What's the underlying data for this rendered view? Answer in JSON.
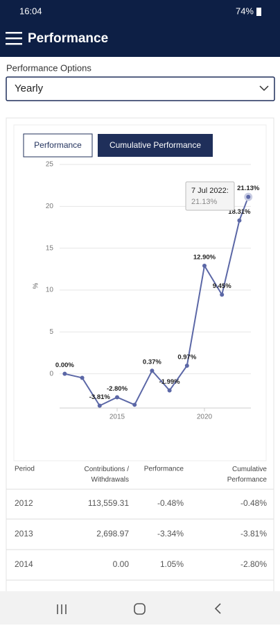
{
  "status_bar": {
    "time": "16:04",
    "battery": "74%"
  },
  "app_bar": {
    "title": "Performance"
  },
  "options": {
    "label": "Performance Options",
    "selected": "Yearly"
  },
  "tabs": [
    "Performance",
    "Cumulative Performance"
  ],
  "chart_data": {
    "type": "line",
    "y_label": "%",
    "x": [
      2012,
      2013,
      2014,
      2015,
      2016,
      2017,
      2018,
      2019,
      2020,
      2021,
      2022,
      2022.51
    ],
    "series": [
      {
        "color": "#5b67a6",
        "values": [
          0,
          -0.48,
          -3.81,
          -2.8,
          -3.7,
          0.37,
          -1.99,
          0.97,
          12.9,
          9.45,
          18.31,
          21.13
        ],
        "value_labels": [
          "0.00%",
          null,
          "-3.81%",
          "-2.80%",
          null,
          "0.37%",
          "-1.99%",
          "0.97%",
          "12.90%",
          "9.45%",
          "18.31%",
          "21.13%"
        ]
      }
    ],
    "xlim": [
      2011.5,
      2023.5
    ],
    "xticks": [
      2015,
      2020
    ],
    "ylim": [
      -5,
      25
    ],
    "yticks": [
      0,
      5,
      10,
      15,
      20,
      25
    ],
    "grid": true,
    "tooltip": {
      "label": "7 Jul 2022:",
      "value_label": "21.13%"
    }
  },
  "table": {
    "header": [
      "Period",
      "Contributions / Withdrawals",
      "Performance",
      "Cumulative Performance"
    ],
    "rows": [
      [
        "2012",
        "113,559.31",
        "-0.48%",
        "-0.48%"
      ],
      [
        "2013",
        "2,698.97",
        "-3.34%",
        "-3.81%"
      ],
      [
        "2014",
        "0.00",
        "1.05%",
        "-2.80%"
      ]
    ]
  }
}
